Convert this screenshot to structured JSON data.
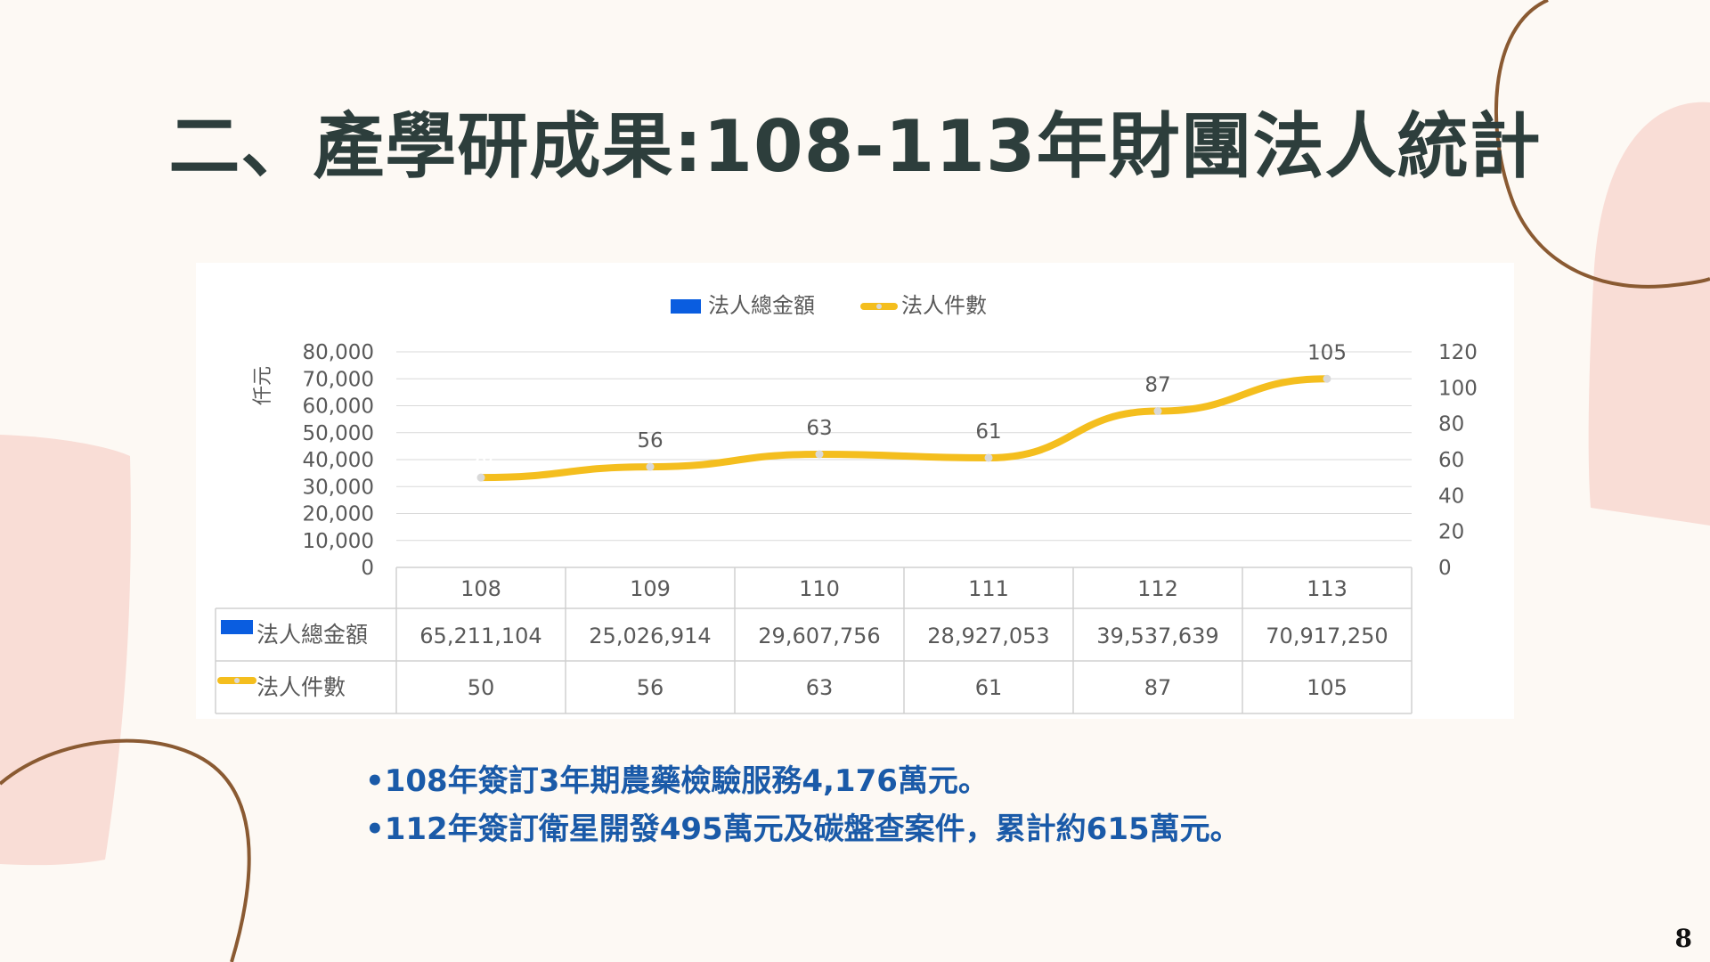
{
  "slide": {
    "title": "二、產學研成果:108-113年財團法人統計",
    "page_number": "8",
    "bullets": [
      "•108年簽訂3年期農藥檢驗服務4,176萬元。",
      "•112年簽訂衛星開發495萬元及碳盤查案件，累計約615萬元。"
    ],
    "colors": {
      "background": "#fdf9f4",
      "title": "#2d3e3c",
      "bullet": "#1a5aa8",
      "blob": "#f9ddd6",
      "curve": "#8a5a32"
    }
  },
  "chart_data": {
    "type": "bar",
    "categories": [
      "108",
      "109",
      "110",
      "111",
      "112",
      "113"
    ],
    "series": [
      {
        "name": "法人總金額",
        "kind": "bar",
        "axis": "left",
        "color": "#0a5de0",
        "values": [
          65211104,
          25026914,
          29607756,
          28927053,
          39537639,
          70917250
        ]
      },
      {
        "name": "法人件數",
        "kind": "line",
        "axis": "right",
        "color": "#f4be1e",
        "values": [
          50,
          56,
          63,
          61,
          87,
          105
        ]
      }
    ],
    "ylabel": "仟元",
    "y_left_ticks": [
      "0",
      "10,000",
      "20,000",
      "30,000",
      "40,000",
      "50,000",
      "60,000",
      "70,000",
      "80,000"
    ],
    "y_left_scale_unit": 1000,
    "ylim_left": [
      0,
      80000
    ],
    "y_right_ticks": [
      "0",
      "20",
      "40",
      "60",
      "80",
      "100",
      "120"
    ],
    "ylim_right": [
      0,
      120
    ],
    "legend_position": "top",
    "grid": true,
    "data_table": {
      "rows": [
        {
          "label": "法人總金額",
          "values": [
            "65,211,104",
            "25,026,914",
            "29,607,756",
            "28,927,053",
            "39,537,639",
            "70,917,250"
          ]
        },
        {
          "label": "法人件數",
          "values": [
            "50",
            "56",
            "63",
            "61",
            "87",
            "105"
          ]
        }
      ]
    }
  }
}
